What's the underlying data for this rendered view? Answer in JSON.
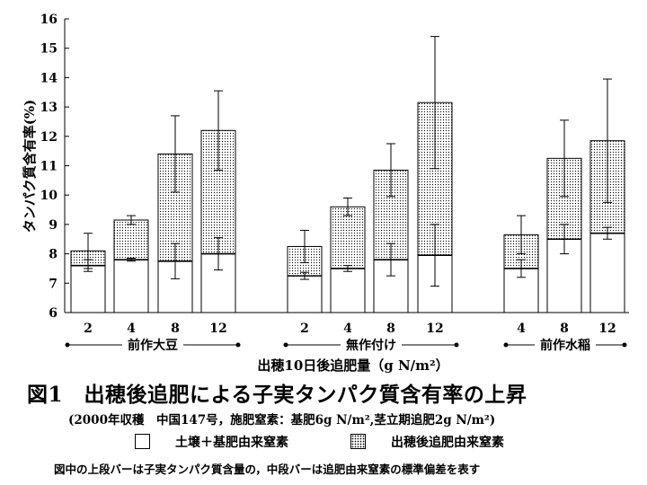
{
  "chart_data": {
    "type": "bar",
    "stacked": true,
    "ylabel": "タンパク質含有率(%)",
    "xlabel": "出穂10日後追肥量（g N/m²）",
    "ylim": [
      6,
      16
    ],
    "yticks": [
      6,
      7,
      8,
      9,
      10,
      11,
      12,
      13,
      14,
      15,
      16
    ],
    "groups": [
      {
        "label": "前作大豆",
        "bars": [
          {
            "x": "2",
            "base": 7.6,
            "total": 8.1,
            "base_err": 0.2,
            "total_err": 0.6
          },
          {
            "x": "4",
            "base": 7.8,
            "total": 9.15,
            "base_err": 0.05,
            "total_err": 0.15
          },
          {
            "x": "8",
            "base": 7.75,
            "total": 11.4,
            "base_err": 0.6,
            "total_err": 1.3
          },
          {
            "x": "12",
            "base": 8.0,
            "total": 12.2,
            "base_err": 0.55,
            "total_err": 1.35
          }
        ]
      },
      {
        "label": "無作付け",
        "bars": [
          {
            "x": "2",
            "base": 7.25,
            "total": 8.25,
            "base_err": 0.12,
            "total_err": 0.55
          },
          {
            "x": "4",
            "base": 7.5,
            "total": 9.6,
            "base_err": 0.1,
            "total_err": 0.3
          },
          {
            "x": "8",
            "base": 7.8,
            "total": 10.85,
            "base_err": 0.55,
            "total_err": 0.9
          },
          {
            "x": "12",
            "base": 7.95,
            "total": 13.15,
            "base_err": 1.05,
            "total_err": 2.25
          }
        ]
      },
      {
        "label": "前作水稲",
        "bars": [
          {
            "x": "4",
            "base": 7.5,
            "total": 8.65,
            "base_err": 0.3,
            "total_err": 0.65
          },
          {
            "x": "8",
            "base": 8.5,
            "total": 11.25,
            "base_err": 0.5,
            "total_err": 1.3
          },
          {
            "x": "12",
            "base": 8.7,
            "total": 11.85,
            "base_err": 0.2,
            "total_err": 2.1
          }
        ]
      }
    ],
    "series": [
      {
        "name": "土壌＋基肥由来窒素",
        "fill": "#ffffff"
      },
      {
        "name": "出穂後追肥由来窒素",
        "fill": "dotted"
      }
    ]
  },
  "caption": {
    "title": "図1　出穂後追肥による子実タンパク質含有率の上昇",
    "subtitle": "(2000年収穫　中国147号，施肥窒素：基肥6g N/m²,茎立期追肥2g N/m²)",
    "legend_base": "土壌＋基肥由来窒素",
    "legend_top": "出穂後追肥由来窒素",
    "footnote": "図中の上段バーは子実タンパク質含量の，中段バーは追肥由来窒素の標準偏差を表す"
  }
}
